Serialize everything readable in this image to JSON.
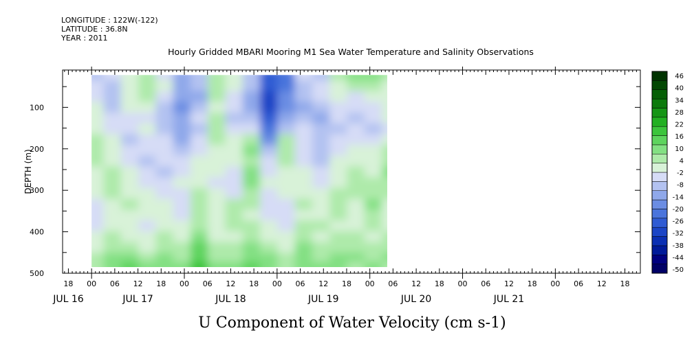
{
  "header": {
    "longitude": "LONGITUDE : 122W(-122)",
    "latitude": "LATITUDE : 36.8N",
    "year": "YEAR : 2011",
    "title": "Hourly Gridded MBARI Mooring M1 Sea Water Temperature and Salinity Observations"
  },
  "chart_data": {
    "type": "heatmap",
    "title": "Hourly Gridded MBARI Mooring M1 Sea Water Temperature and Salinity Observations",
    "variable_label": "U Component of Water Velocity (cm s-1)",
    "ylabel": "DEPTH (m)",
    "y_inverted": true,
    "ylim": [
      500,
      10
    ],
    "y_ticks": [
      100,
      200,
      300,
      400,
      500
    ],
    "x_hours_range": [
      -7.5,
      142
    ],
    "x_hour_ticks": [
      {
        "hour": -6,
        "label": "18"
      },
      {
        "hour": 0,
        "label": "00"
      },
      {
        "hour": 6,
        "label": "06"
      },
      {
        "hour": 12,
        "label": "12"
      },
      {
        "hour": 18,
        "label": "18"
      },
      {
        "hour": 24,
        "label": "00"
      },
      {
        "hour": 30,
        "label": "06"
      },
      {
        "hour": 36,
        "label": "12"
      },
      {
        "hour": 42,
        "label": "18"
      },
      {
        "hour": 48,
        "label": "00"
      },
      {
        "hour": 54,
        "label": "06"
      },
      {
        "hour": 60,
        "label": "12"
      },
      {
        "hour": 66,
        "label": "18"
      },
      {
        "hour": 72,
        "label": "00"
      },
      {
        "hour": 78,
        "label": "06"
      },
      {
        "hour": 84,
        "label": "12"
      },
      {
        "hour": 90,
        "label": "18"
      },
      {
        "hour": 96,
        "label": "00"
      },
      {
        "hour": 102,
        "label": "06"
      },
      {
        "hour": 108,
        "label": "12"
      },
      {
        "hour": 114,
        "label": "18"
      },
      {
        "hour": 120,
        "label": "00"
      },
      {
        "hour": 126,
        "label": "06"
      },
      {
        "hour": 132,
        "label": "12"
      },
      {
        "hour": 138,
        "label": "18"
      }
    ],
    "x_day_labels": [
      {
        "hour": -6,
        "label": "JUL 16"
      },
      {
        "hour": 12,
        "label": "JUL 17"
      },
      {
        "hour": 36,
        "label": "JUL 18"
      },
      {
        "hour": 60,
        "label": "JUL 19"
      },
      {
        "hour": 84,
        "label": "JUL 20"
      },
      {
        "hour": 108,
        "label": "JUL 21"
      }
    ],
    "colorbar_levels": [
      -50,
      -44,
      -38,
      -32,
      -26,
      -20,
      -14,
      -8,
      -2,
      4,
      10,
      16,
      22,
      28,
      34,
      40,
      46
    ],
    "colorbar_colors": [
      "#000066",
      "#00007f",
      "#001a99",
      "#0a2fb3",
      "#1b45c6",
      "#2f5bd3",
      "#4a74dc",
      "#6b8de3",
      "#8fa8ea",
      "#b3c2f1",
      "#d6dcf6",
      "#d8f2d8",
      "#aeeaaa",
      "#83e083",
      "#5ed45e",
      "#3cc53c",
      "#22b022",
      "#159515",
      "#0c7a0c",
      "#065f06",
      "#024702",
      "#003300"
    ],
    "data_extent": {
      "hour_start": 0,
      "hour_end": 76.5,
      "depth_top": 22,
      "depth_bottom": 485
    },
    "depth_levels_m": [
      22,
      48,
      74,
      100,
      126,
      152,
      178,
      204,
      230,
      256,
      282,
      308,
      334,
      360,
      386,
      412,
      438,
      464,
      485
    ],
    "hour_steps": [
      0,
      4.5,
      9,
      13.5,
      18,
      22.5,
      27,
      31.5,
      36,
      40.5,
      45,
      49.5,
      54,
      58.5,
      63,
      67.5,
      72,
      76.5
    ],
    "values_cm_s": [
      [
        -8,
        -6,
        -2,
        4,
        -4,
        -14,
        -8,
        4,
        -2,
        -10,
        -26,
        -24,
        -6,
        -8,
        4,
        10,
        8,
        4
      ],
      [
        -6,
        -8,
        2,
        6,
        -2,
        -12,
        -10,
        6,
        0,
        -8,
        -28,
        -22,
        -8,
        -4,
        2,
        6,
        4,
        0
      ],
      [
        -4,
        -10,
        0,
        4,
        -6,
        -14,
        -12,
        4,
        -4,
        -12,
        -30,
        -20,
        -10,
        -6,
        -2,
        -4,
        -2,
        2
      ],
      [
        -2,
        -8,
        -2,
        -2,
        -8,
        -16,
        -10,
        2,
        -6,
        -14,
        -32,
        -18,
        -12,
        -10,
        -4,
        -6,
        -4,
        0
      ],
      [
        0,
        -6,
        -4,
        -4,
        -10,
        -12,
        -6,
        4,
        -8,
        -10,
        -26,
        -14,
        -8,
        -12,
        -6,
        -8,
        -6,
        -2
      ],
      [
        2,
        -4,
        -6,
        -2,
        -8,
        -14,
        -8,
        6,
        -4,
        -6,
        -22,
        -10,
        -6,
        -10,
        -8,
        -6,
        -8,
        -4
      ],
      [
        4,
        -2,
        -8,
        -4,
        -6,
        -12,
        -6,
        4,
        -2,
        6,
        -18,
        4,
        -4,
        -8,
        -6,
        -4,
        -6,
        2
      ],
      [
        6,
        0,
        -6,
        -6,
        -4,
        -10,
        -4,
        2,
        0,
        8,
        -8,
        6,
        -6,
        -10,
        -4,
        -2,
        -2,
        4
      ],
      [
        4,
        2,
        -4,
        -8,
        -6,
        -6,
        -2,
        0,
        -2,
        6,
        -6,
        4,
        -4,
        -8,
        -2,
        2,
        0,
        6
      ],
      [
        2,
        4,
        -2,
        -6,
        -8,
        -4,
        0,
        -2,
        -4,
        8,
        -4,
        2,
        -2,
        -6,
        0,
        4,
        2,
        8
      ],
      [
        0,
        6,
        0,
        -4,
        -6,
        -2,
        2,
        -4,
        -6,
        10,
        -2,
        0,
        0,
        -4,
        2,
        6,
        4,
        6
      ],
      [
        -2,
        4,
        2,
        -2,
        -4,
        -4,
        4,
        -2,
        -4,
        6,
        -4,
        -2,
        2,
        -2,
        4,
        4,
        6,
        4
      ],
      [
        -4,
        2,
        4,
        0,
        -2,
        -6,
        6,
        0,
        4,
        4,
        -6,
        -4,
        4,
        0,
        6,
        2,
        8,
        2
      ],
      [
        -6,
        0,
        2,
        -2,
        0,
        -4,
        4,
        -2,
        6,
        2,
        -4,
        -6,
        2,
        2,
        4,
        0,
        6,
        0
      ],
      [
        -4,
        2,
        0,
        -4,
        2,
        -2,
        6,
        0,
        4,
        4,
        -2,
        -4,
        4,
        4,
        2,
        2,
        4,
        2
      ],
      [
        -2,
        4,
        2,
        -2,
        4,
        0,
        8,
        2,
        2,
        6,
        0,
        -2,
        6,
        2,
        4,
        4,
        2,
        4
      ],
      [
        2,
        6,
        6,
        2,
        6,
        4,
        12,
        4,
        4,
        8,
        4,
        2,
        8,
        4,
        6,
        6,
        4,
        6
      ],
      [
        4,
        8,
        10,
        6,
        8,
        6,
        16,
        6,
        6,
        10,
        8,
        4,
        10,
        6,
        8,
        8,
        6,
        8
      ],
      [
        6,
        10,
        14,
        8,
        10,
        8,
        18,
        8,
        8,
        12,
        10,
        6,
        8,
        8,
        10,
        6,
        8,
        6
      ]
    ]
  }
}
